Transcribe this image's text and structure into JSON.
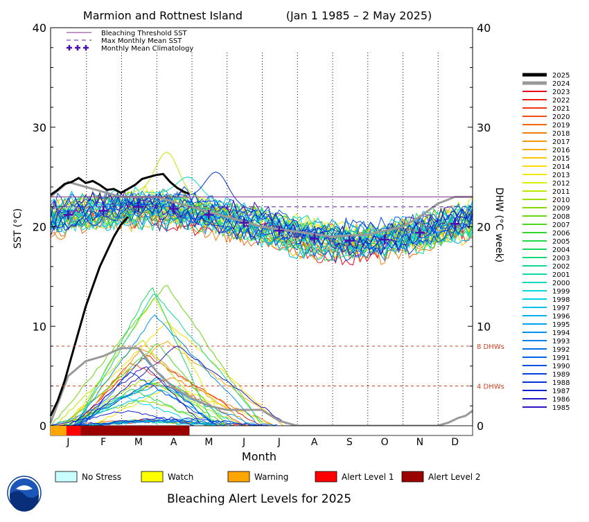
{
  "chart_data": {
    "type": "line",
    "title": "Marmion and Rottnest Island",
    "date_range": "(Jan 1 1985 – 2 May 2025)",
    "ylabel_left": "SST (°C)",
    "ylabel_right": "DHW (°C week)",
    "xlabel": "Month",
    "months": [
      "J",
      "F",
      "M",
      "A",
      "M",
      "J",
      "J",
      "A",
      "S",
      "O",
      "N",
      "D"
    ],
    "ylim": [
      0,
      40
    ],
    "yticks": [
      "0",
      "10",
      "20",
      "30",
      "40"
    ],
    "yticks_right": [
      "0",
      "10",
      "20",
      "30",
      "40"
    ],
    "thresholds": {
      "bleaching_threshold_sst": 23.0,
      "max_monthly_mean_sst": 22.0,
      "dhw_lines": [
        {
          "value": 8,
          "label": "8 DHWs"
        },
        {
          "value": 4,
          "label": "4 DHWs"
        }
      ]
    },
    "climatology": {
      "name": "Monthly Mean Climatology",
      "values": [
        21.2,
        21.6,
        22.0,
        21.8,
        21.2,
        20.4,
        19.6,
        18.8,
        18.6,
        18.7,
        19.4,
        20.3
      ]
    },
    "legend_top": [
      {
        "label": "Bleaching Threshold SST",
        "color": "#7b2c8c"
      },
      {
        "label": "Max Monthly Mean SST",
        "color": "#5a1aa8"
      },
      {
        "label": "Monthly Mean Climatology",
        "color": "#4b0fb0"
      }
    ],
    "year_legend": [
      {
        "year": "2025",
        "color": "#000000"
      },
      {
        "year": "2024",
        "color": "#999999"
      },
      {
        "year": "2023",
        "color": "#e8001a"
      },
      {
        "year": "2022",
        "color": "#ec1c14"
      },
      {
        "year": "2021",
        "color": "#ee3412"
      },
      {
        "year": "2020",
        "color": "#f04c10"
      },
      {
        "year": "2019",
        "color": "#f2640e"
      },
      {
        "year": "2018",
        "color": "#f47c0c"
      },
      {
        "year": "2017",
        "color": "#f6940a"
      },
      {
        "year": "2016",
        "color": "#f8ac08"
      },
      {
        "year": "2015",
        "color": "#fac406"
      },
      {
        "year": "2014",
        "color": "#fcdc04"
      },
      {
        "year": "2013",
        "color": "#f0e800"
      },
      {
        "year": "2012",
        "color": "#d8ee00"
      },
      {
        "year": "2011",
        "color": "#bce800"
      },
      {
        "year": "2010",
        "color": "#a0e000"
      },
      {
        "year": "2009",
        "color": "#84d800"
      },
      {
        "year": "2008",
        "color": "#68d810"
      },
      {
        "year": "2007",
        "color": "#4cd820"
      },
      {
        "year": "2006",
        "color": "#30d830"
      },
      {
        "year": "2005",
        "color": "#20d848"
      },
      {
        "year": "2004",
        "color": "#18d860"
      },
      {
        "year": "2003",
        "color": "#14d878"
      },
      {
        "year": "2002",
        "color": "#10d890"
      },
      {
        "year": "2001",
        "color": "#0cd8a8"
      },
      {
        "year": "2000",
        "color": "#08d8c0"
      },
      {
        "year": "1999",
        "color": "#04d8d8"
      },
      {
        "year": "1998",
        "color": "#00d0e8"
      },
      {
        "year": "1997",
        "color": "#00c0f0"
      },
      {
        "year": "1996",
        "color": "#00b0f0"
      },
      {
        "year": "1995",
        "color": "#00a0ee"
      },
      {
        "year": "1994",
        "color": "#0090ec"
      },
      {
        "year": "1993",
        "color": "#0080ea"
      },
      {
        "year": "1992",
        "color": "#0070e8"
      },
      {
        "year": "1991",
        "color": "#0060e4"
      },
      {
        "year": "1990",
        "color": "#0050e0"
      },
      {
        "year": "1989",
        "color": "#0040dc"
      },
      {
        "year": "1988",
        "color": "#0030d8"
      },
      {
        "year": "1987",
        "color": "#1020d0"
      },
      {
        "year": "1986",
        "color": "#2018c8"
      },
      {
        "year": "1985",
        "color": "#3010c0"
      }
    ],
    "alert_bar": [
      {
        "level": "warning",
        "from_month": 0.0,
        "to_month": 0.45
      },
      {
        "level": "alert1",
        "from_month": 0.45,
        "to_month": 0.85
      },
      {
        "level": "alert2",
        "from_month": 0.85,
        "to_month": 3.95
      }
    ],
    "alert_legend_title": "Bleaching Alert Levels for 2025",
    "alert_legend": [
      {
        "key": "no_stress",
        "label": "No Stress",
        "color": "#c8ffff"
      },
      {
        "key": "watch",
        "label": "Watch",
        "color": "#ffff00"
      },
      {
        "key": "warning",
        "label": "Warning",
        "color": "#ffa500"
      },
      {
        "key": "alert1",
        "label": "Alert Level 1",
        "color": "#ff0000"
      },
      {
        "key": "alert2",
        "label": "Alert Level 2",
        "color": "#9b0000"
      }
    ],
    "series_2025_sst": {
      "x_month": [
        0.0,
        0.2,
        0.4,
        0.6,
        0.8,
        1.0,
        1.2,
        1.4,
        1.6,
        1.8,
        2.0,
        2.2,
        2.4,
        2.6,
        2.8,
        3.0,
        3.2,
        3.4,
        3.6,
        3.8,
        3.95
      ],
      "y": [
        23.2,
        23.7,
        24.3,
        24.5,
        24.9,
        24.4,
        24.6,
        24.2,
        23.7,
        23.8,
        23.4,
        23.8,
        24.2,
        24.8,
        25.0,
        25.2,
        25.3,
        24.5,
        23.9,
        23.5,
        23.3
      ]
    },
    "series_2025_dhw": {
      "x_month": [
        0.0,
        0.2,
        0.4,
        0.6,
        0.8,
        1.0,
        1.2,
        1.4,
        1.6,
        1.8,
        2.0,
        2.2
      ],
      "y": [
        1.0,
        2.5,
        4.5,
        7.0,
        9.5,
        12.0,
        14.0,
        16.0,
        17.5,
        19.0,
        20.2,
        21.0
      ]
    },
    "series_2024_dhw": {
      "x_month": [
        0.0,
        0.5,
        1.0,
        1.5,
        2.0,
        2.5,
        3.0,
        3.5,
        4.0,
        4.5,
        5.0,
        5.5,
        6.0,
        6.5,
        7.0,
        11.0,
        11.3,
        11.6,
        11.8,
        12.0
      ],
      "y": [
        0.3,
        5.0,
        6.5,
        7.0,
        7.8,
        7.8,
        5.5,
        3.8,
        2.8,
        2.0,
        1.6,
        1.6,
        1.6,
        0.5,
        0.0,
        0.0,
        0.3,
        0.8,
        1.0,
        1.5
      ]
    },
    "series_2024_sst": {
      "x_month": [
        0.0,
        0.5,
        1.0,
        1.5,
        2.0,
        2.5,
        3.0,
        3.5,
        4.0,
        5.0,
        6.0,
        7.0,
        8.0,
        9.0,
        10.0,
        10.5,
        11.0,
        11.5,
        12.0
      ],
      "y": [
        23.0,
        24.5,
        24.0,
        23.5,
        23.0,
        23.0,
        23.0,
        22.5,
        22.0,
        21.0,
        20.0,
        19.5,
        19.0,
        19.2,
        20.0,
        21.0,
        22.3,
        23.0,
        23.0
      ]
    },
    "sample_peaks": [
      {
        "year": "2011",
        "peak_month": 3.3,
        "peak": 27.5
      },
      {
        "year": "2000",
        "peak_month": 3.9,
        "peak": 25.0
      },
      {
        "year": "1988",
        "peak_month": 4.7,
        "peak": 25.5
      }
    ]
  }
}
